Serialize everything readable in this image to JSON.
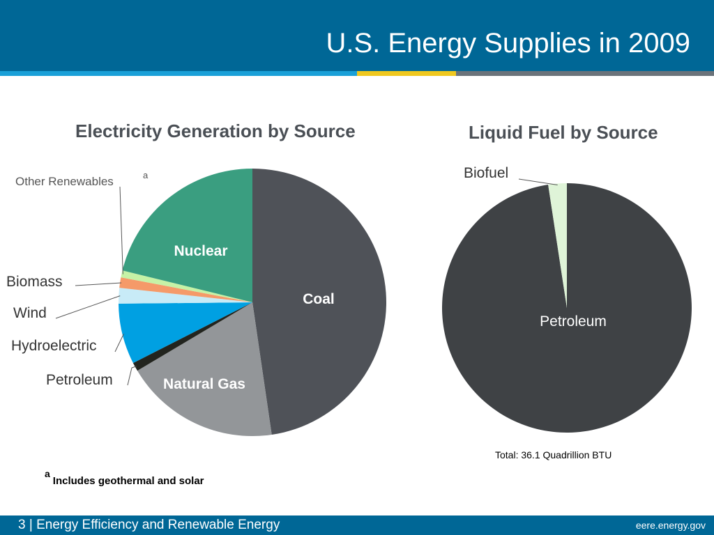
{
  "header": {
    "title": "U.S. Energy Supplies in 2009"
  },
  "colors": {
    "header_bg": "#006796",
    "stripe_blue": "#1aa0d8",
    "stripe_yellow": "#f0c81e",
    "stripe_gray": "#6b737a"
  },
  "chart_data": [
    {
      "type": "pie",
      "title": "Electricity Generation by Source",
      "slices": [
        {
          "label": "Coal",
          "value": 45.5,
          "color": "#4f5258"
        },
        {
          "label": "Natural Gas",
          "value": 17.9,
          "color": "#939699"
        },
        {
          "label": "Petroleum",
          "value": 1.0,
          "color": "#22241e"
        },
        {
          "label": "Hydroelectric",
          "value": 7.0,
          "color": "#00a0e2"
        },
        {
          "label": "Wind",
          "value": 1.8,
          "color": "#c8ebf7"
        },
        {
          "label": "Biomass",
          "value": 1.2,
          "color": "#f59a69"
        },
        {
          "label": "Other Renewables",
          "value": 0.8,
          "color": "#c6f2a6"
        },
        {
          "label": "Nuclear",
          "value": 20.2,
          "color": "#3a9e80"
        }
      ],
      "footnote_marker": "a"
    },
    {
      "type": "pie",
      "title": "Liquid Fuel by Source",
      "slices": [
        {
          "label": "Petroleum",
          "value": 97.6,
          "color": "#3f4245"
        },
        {
          "label": "Biofuel",
          "value": 2.4,
          "color": "#dff4d8"
        }
      ],
      "total": "Total: 36.1 Quadrillion BTU"
    }
  ],
  "footnote": {
    "marker": "a",
    "text": "Includes geothermal and solar"
  },
  "footer": {
    "page_number": "3",
    "separator": "|",
    "text": "Energy Efficiency and Renewable Energy",
    "url": "eere.energy.gov"
  }
}
